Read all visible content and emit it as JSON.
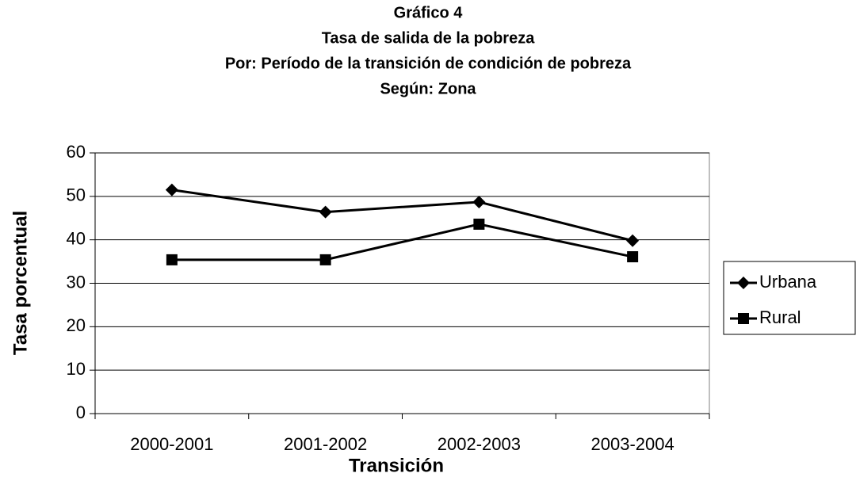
{
  "chart_data": {
    "type": "line",
    "title": "Gráfico 4",
    "subtitle": [
      "Tasa de salida de la pobreza",
      "Por: Período de la transición de condición de pobreza",
      "Según: Zona"
    ],
    "x_label": "Transición",
    "y_label": "Tasa porcentual",
    "categories": [
      "2000-2001",
      "2001-2002",
      "2002-2003",
      "2003-2004"
    ],
    "series": [
      {
        "name": "Urbana",
        "color": "#000000",
        "marker": "diamond",
        "values": [
          51.5,
          46.4,
          48.7,
          39.8
        ]
      },
      {
        "name": "Rural",
        "color": "#000000",
        "marker": "square",
        "values": [
          35.4,
          35.4,
          43.6,
          36.1
        ]
      }
    ],
    "ylim": [
      0,
      60
    ],
    "yticks": [
      0,
      10,
      20,
      30,
      40,
      50,
      60
    ],
    "grid": true,
    "legend": "right"
  }
}
